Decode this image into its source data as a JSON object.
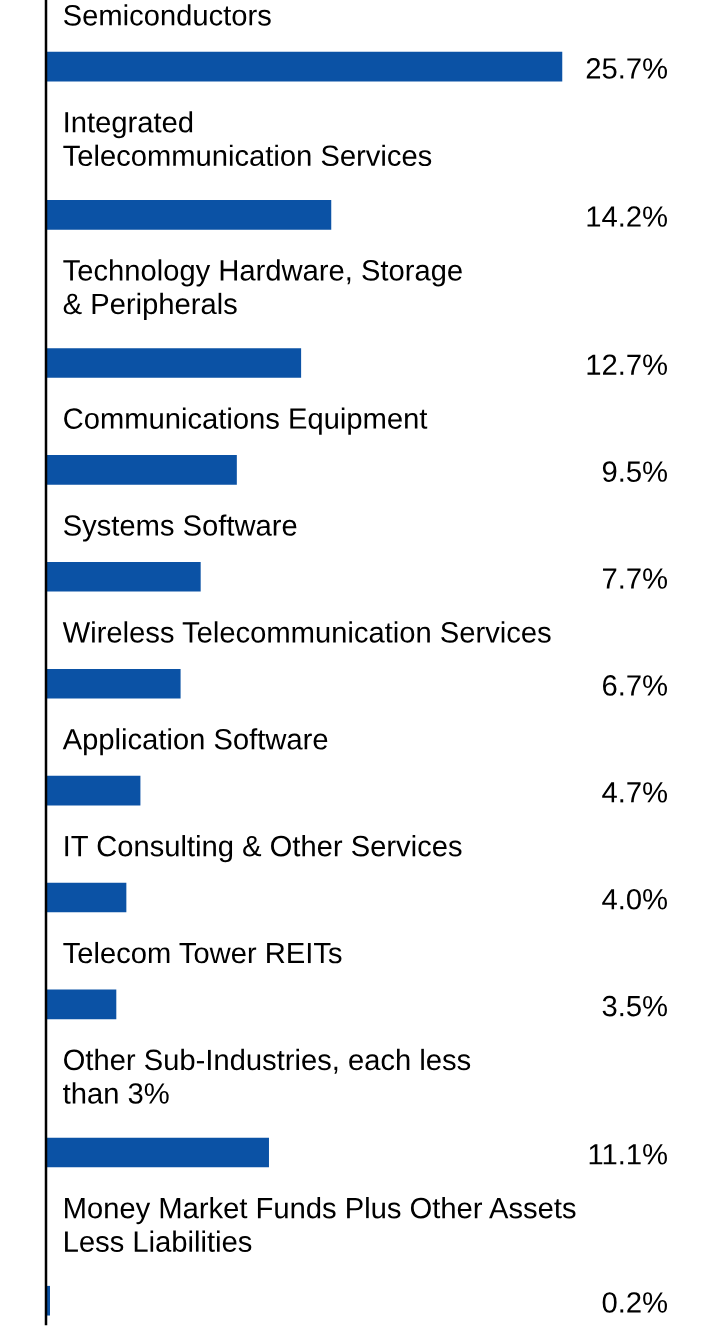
{
  "chart_data": {
    "type": "bar",
    "orientation": "horizontal",
    "categories": [
      "Semiconductors",
      "Integrated\nTelecommunication Services",
      "Technology Hardware, Storage\n& Peripherals",
      "Communications Equipment",
      "Systems Software",
      "Wireless Telecommunication Services",
      "Application Software",
      "IT Consulting & Other Services",
      "Telecom Tower REITs",
      "Other Sub-Industries, each less\nthan 3%",
      "Money Market Funds Plus Other Assets\nLess Liabilities"
    ],
    "values": [
      25.7,
      14.2,
      12.7,
      9.5,
      7.7,
      6.7,
      4.7,
      4.0,
      3.5,
      11.1,
      0.2
    ],
    "value_labels": [
      "25.7%",
      "14.2%",
      "12.7%",
      "9.5%",
      "7.7%",
      "6.7%",
      "4.7%",
      "4.0%",
      "3.5%",
      "11.1%",
      "0.2%"
    ],
    "color": "#0b52a5"
  }
}
